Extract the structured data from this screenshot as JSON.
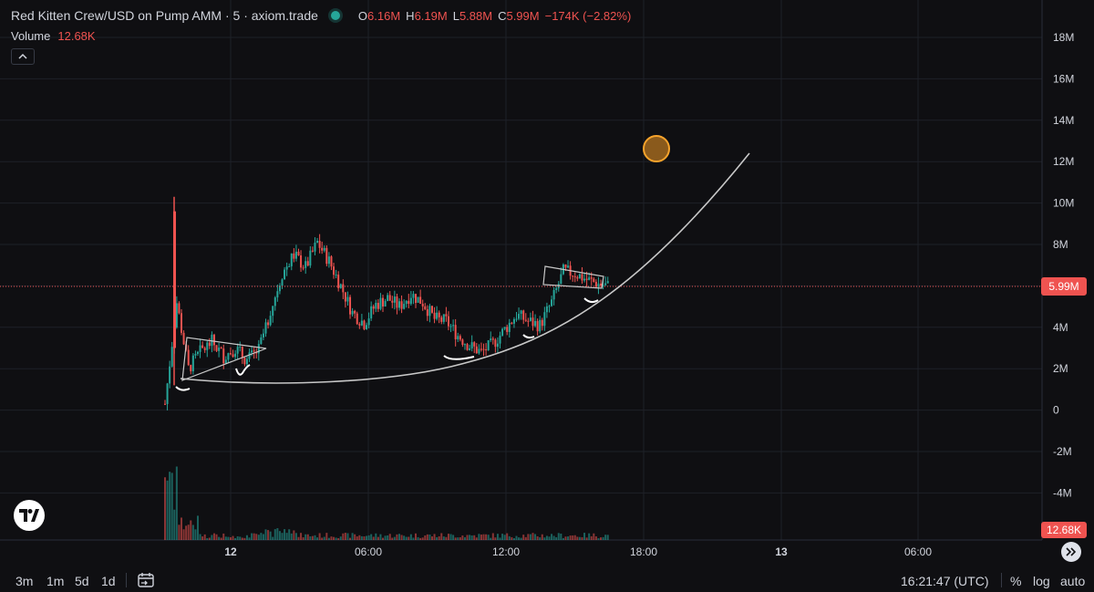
{
  "legend": {
    "symbol": "Red Kitten Crew/USD on Pump AMM · 5 · axiom.trade",
    "open_label": "O",
    "open": "6.16M",
    "high_label": "H",
    "high": "6.19M",
    "low_label": "L",
    "low": "5.88M",
    "close_label": "C",
    "close": "5.99M",
    "change": "−174K (−2.82%)"
  },
  "volume": {
    "label": "Volume",
    "value": "12.68K"
  },
  "price_tags": {
    "last_price": "5.99M",
    "last_volume": "12.68K"
  },
  "bottom_bar": {
    "timeframes": [
      "3m",
      "1m",
      "5d",
      "1d"
    ],
    "clock": "16:21:47 (UTC)",
    "options": [
      "%",
      "log",
      "auto"
    ]
  },
  "colors": {
    "up": "#26a69a",
    "down": "#ef5350",
    "background": "#0f0f12",
    "drawing": "#c8c8c8",
    "marker": "#f7a32b"
  },
  "icons": {
    "collapse": "chevron-up-icon",
    "goto": "goto-date-icon",
    "logo": "tradingview-logo-icon",
    "scroll": "scroll-to-realtime-icon"
  },
  "chart_data": {
    "type": "candlestick",
    "y_axis": {
      "unit": "M",
      "ticks": [
        18,
        16,
        14,
        12,
        10,
        8,
        6,
        4,
        2,
        0,
        -2,
        -4
      ],
      "tick_labels": [
        "18M",
        "16M",
        "14M",
        "12M",
        "10M",
        "8M",
        "6M",
        "4M",
        "2M",
        "0",
        "-2M",
        "-4M"
      ],
      "range": [
        -5.8,
        19.4
      ]
    },
    "x_axis": {
      "tick_labels": [
        "12",
        "06:00",
        "12:00",
        "18:00",
        "13",
        "06:00"
      ],
      "bold": [
        "12",
        "13"
      ]
    },
    "grid": true,
    "price_path": [
      [
        0,
        0.3
      ],
      [
        0.5,
        5.2
      ],
      [
        1.0,
        2.0
      ],
      [
        1.5,
        2.8
      ],
      [
        2.0,
        3.3
      ],
      [
        2.5,
        2.6
      ],
      [
        3.0,
        3.0
      ],
      [
        3.5,
        2.4
      ],
      [
        4.0,
        2.9
      ],
      [
        4.5,
        4.8
      ],
      [
        5.0,
        6.6
      ],
      [
        5.5,
        7.5
      ],
      [
        6.0,
        6.9
      ],
      [
        6.5,
        8.1
      ],
      [
        7.0,
        7.2
      ],
      [
        7.5,
        6.0
      ],
      [
        8.0,
        4.7
      ],
      [
        8.5,
        4.2
      ],
      [
        9.0,
        5.1
      ],
      [
        9.5,
        5.4
      ],
      [
        10.0,
        5.0
      ],
      [
        10.5,
        5.6
      ],
      [
        11.0,
        5.2
      ],
      [
        11.5,
        4.4
      ],
      [
        12.0,
        4.3
      ],
      [
        12.5,
        3.6
      ],
      [
        13.0,
        3.1
      ],
      [
        13.5,
        2.8
      ],
      [
        14.0,
        3.2
      ],
      [
        14.5,
        3.9
      ],
      [
        15.0,
        4.6
      ],
      [
        15.5,
        4.3
      ],
      [
        16.0,
        4.1
      ],
      [
        16.5,
        5.2
      ],
      [
        17.0,
        6.7
      ],
      [
        17.5,
        6.6
      ],
      [
        18.0,
        6.3
      ],
      [
        18.5,
        6.1
      ],
      [
        18.9,
        6.0
      ]
    ],
    "last_price": 5.99,
    "volume_last": "12.68K"
  }
}
